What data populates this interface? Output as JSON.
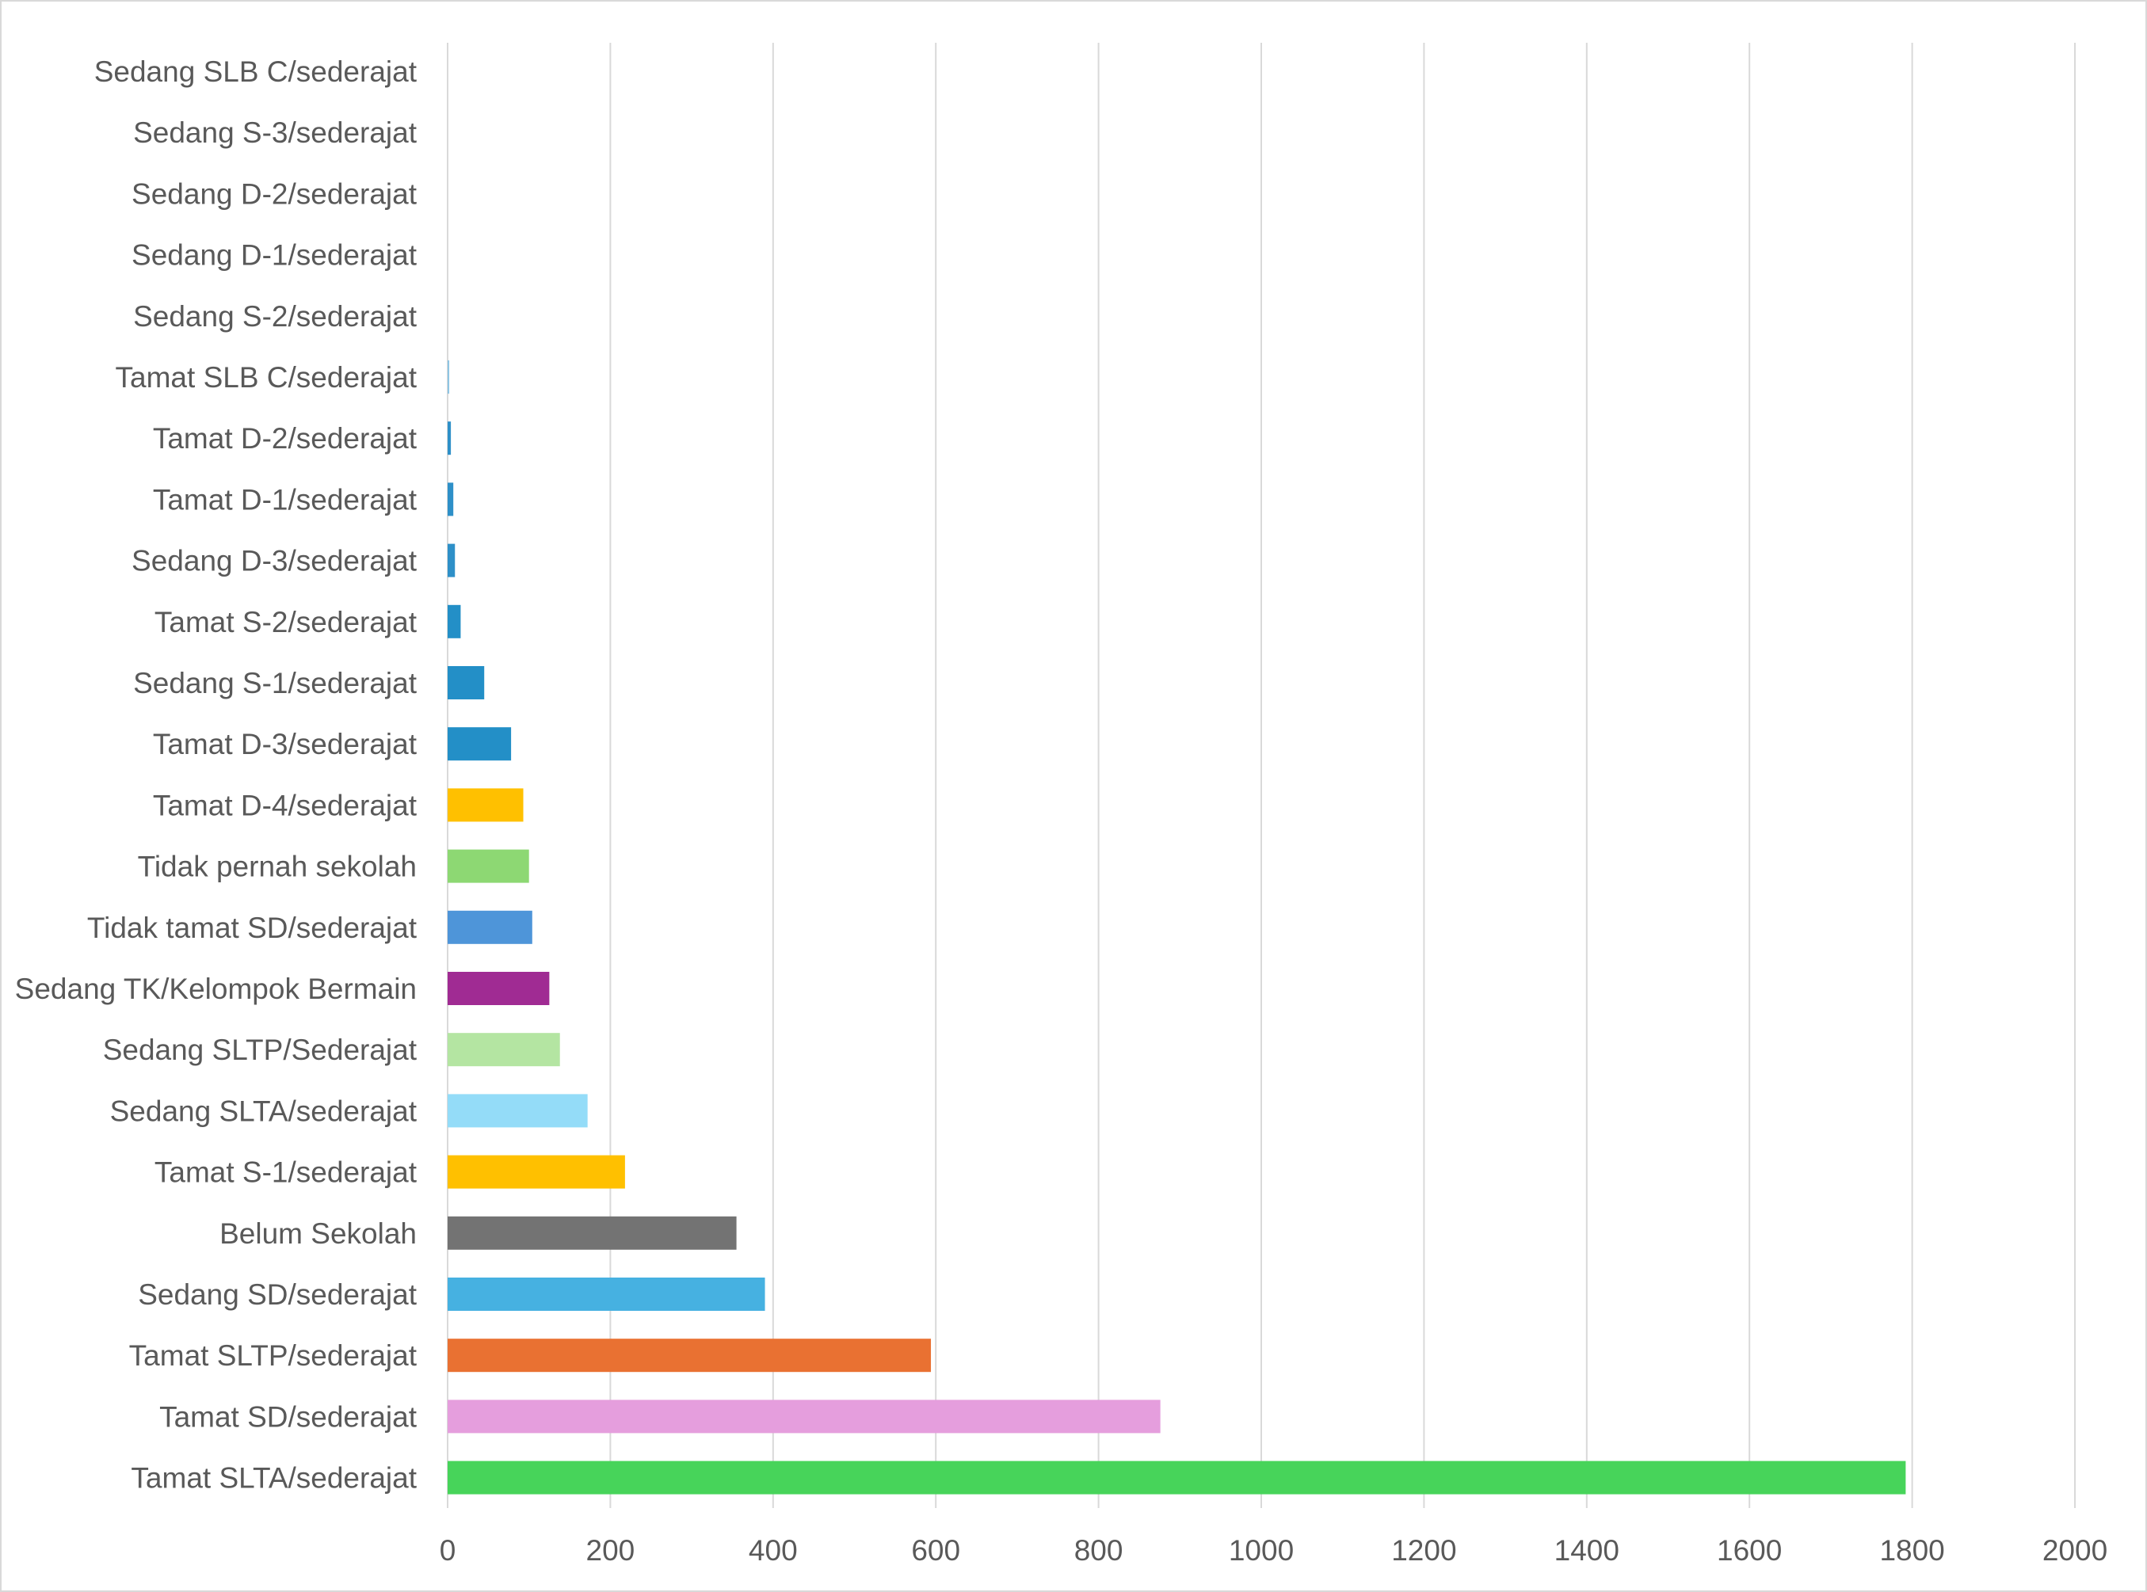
{
  "chart_data": {
    "type": "bar",
    "orientation": "horizontal",
    "title": "",
    "xlabel": "",
    "ylabel": "",
    "xlim": [
      0,
      2000
    ],
    "x_ticks": [
      0,
      200,
      400,
      600,
      800,
      1000,
      1200,
      1400,
      1600,
      1800,
      2000
    ],
    "grid": "vertical",
    "legend": "none",
    "categories": [
      "Sedang SLB C/sederajat",
      "Sedang S-3/sederajat",
      "Sedang D-2/sederajat",
      "Sedang D-1/sederajat",
      "Sedang S-2/sederajat",
      "Tamat SLB C/sederajat",
      "Tamat D-2/sederajat",
      "Tamat D-1/sederajat",
      "Sedang D-3/sederajat",
      "Tamat S-2/sederajat",
      "Sedang S-1/sederajat",
      "Tamat D-3/sederajat",
      "Tamat D-4/sederajat",
      "Tidak pernah sekolah",
      "Tidak tamat SD/sederajat",
      "Sedang TK/Kelompok Bermain",
      "Sedang SLTP/Sederajat",
      "Sedang SLTA/sederajat",
      "Tamat S-1/sederajat",
      "Belum Sekolah",
      "Sedang SD/sederajat",
      "Tamat SLTP/sederajat",
      "Tamat SD/sederajat",
      "Tamat SLTA/sederajat"
    ],
    "values": [
      0,
      0,
      0,
      0,
      0,
      2,
      4,
      7,
      9,
      16,
      45,
      78,
      93,
      100,
      104,
      125,
      138,
      172,
      218,
      355,
      390,
      594,
      876,
      1792
    ],
    "colors": [
      "#9dc3e6",
      "#9dc3e6",
      "#9dc3e6",
      "#9dc3e6",
      "#9dc3e6",
      "#8ec5e3",
      "#2e90c8",
      "#2e90c8",
      "#2e90c8",
      "#238fc7",
      "#238fc7",
      "#238fc7",
      "#ffc000",
      "#8dd873",
      "#4e95d9",
      "#a02b93",
      "#b4e5a2",
      "#94dcf8",
      "#ffc000",
      "#737373",
      "#46b1e1",
      "#e97132",
      "#e59edd",
      "#47d45a"
    ]
  }
}
